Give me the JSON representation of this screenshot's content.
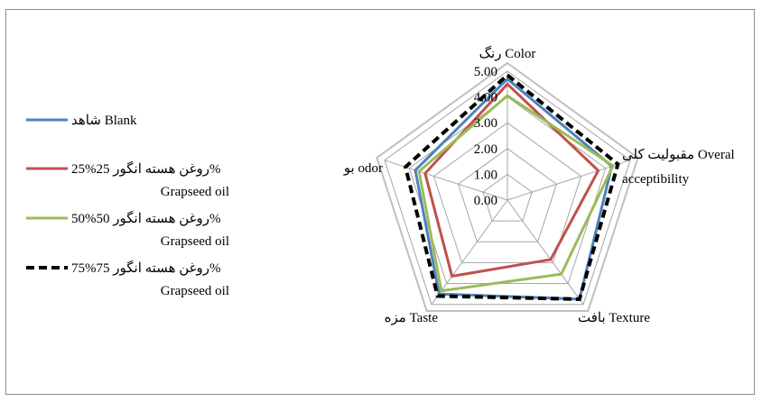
{
  "chart_data": {
    "type": "radar",
    "axes": [
      "رنگ Color",
      "مقبولیت کلی Overal acceptibility",
      "بافت Texture",
      "مزه Taste",
      "بو odor"
    ],
    "axis_label_lines": [
      [
        "رنگ Color"
      ],
      [
        "مقبولیت کلی  Overal",
        "acceptibility"
      ],
      [
        "بافت Texture"
      ],
      [
        "مزه Taste"
      ],
      [
        "بو odor"
      ]
    ],
    "rmin": 0,
    "rmax": 5,
    "ticks": [
      "0.00",
      "1.00",
      "2.00",
      "3.00",
      "4.00",
      "5.00"
    ],
    "series": [
      {
        "name": "شاهد Blank",
        "legend_lines": [
          "شاهد  Blank"
        ],
        "color": "#4f81bd",
        "dash": "solid",
        "values": [
          4.7,
          4.25,
          4.75,
          4.5,
          3.75
        ]
      },
      {
        "name": "25%روغن هسته انگور 25% Grapseed oil",
        "legend_lines": [
          "25%روغن هسته انگور 25%",
          "Grapseed oil"
        ],
        "color": "#c0504d",
        "dash": "solid",
        "values": [
          4.5,
          3.7,
          2.85,
          3.65,
          3.35
        ]
      },
      {
        "name": "50%روغن هسته انگور 50% Grapseed oil",
        "legend_lines": [
          "50%روغن هسته انگور 50%",
          "Grapseed oil"
        ],
        "color": "#9bbb59",
        "dash": "solid",
        "values": [
          4.05,
          4.3,
          3.55,
          4.35,
          3.6
        ]
      },
      {
        "name": "75%روغن هسته انگور 75% Grapseed oil",
        "legend_lines": [
          "75%روغن هسته انگور 75%",
          "Grapseed oil"
        ],
        "color": "#000000",
        "dash": "dashed",
        "values": [
          4.85,
          4.5,
          4.75,
          4.6,
          4.15
        ]
      }
    ],
    "legend_position": "left",
    "grid": true
  }
}
